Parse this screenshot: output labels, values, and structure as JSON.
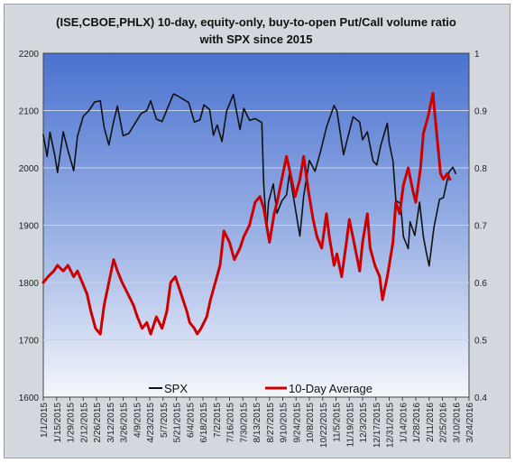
{
  "chart_data": {
    "type": "line",
    "title_lines": [
      "(ISE,CBOE,PHLX) 10-day, equity-only, buy-to-open Put/Call volume ratio",
      "with SPX since 2015"
    ],
    "y_left": {
      "ylim": [
        1600,
        2200
      ],
      "ticks": [
        1600,
        1700,
        1800,
        1900,
        2000,
        2100,
        2200
      ]
    },
    "y_right": {
      "ylim": [
        0.4,
        1.0
      ],
      "ticks": [
        0.4,
        0.5,
        0.6,
        0.7,
        0.8,
        0.9,
        1.0
      ]
    },
    "x_range": [
      "2015-01-01",
      "2016-03-24"
    ],
    "x_tick_labels": [
      "1/1/2015",
      "1/15/2015",
      "1/29/2015",
      "2/12/2015",
      "2/26/2015",
      "3/12/2015",
      "3/26/2015",
      "4/9/2015",
      "4/23/2015",
      "5/7/2015",
      "5/21/2015",
      "6/4/2015",
      "6/18/2015",
      "7/2/2015",
      "7/16/2015",
      "7/30/2015",
      "8/13/2015",
      "8/27/2015",
      "9/10/2015",
      "9/24/2015",
      "10/8/2015",
      "10/22/2015",
      "11/5/2015",
      "11/19/2015",
      "12/3/2015",
      "12/17/2015",
      "12/31/2015",
      "1/14/2016",
      "1/28/2016",
      "2/11/2016",
      "2/25/2016",
      "3/10/2016",
      "3/24/2016"
    ],
    "grid": true,
    "legend_position": "bottom",
    "series": [
      {
        "name": "SPX",
        "axis": "left",
        "color": "#111111",
        "points": [
          [
            "2015-01-01",
            2058
          ],
          [
            "2015-01-05",
            2020
          ],
          [
            "2015-01-08",
            2062
          ],
          [
            "2015-01-13",
            2023
          ],
          [
            "2015-01-16",
            1992
          ],
          [
            "2015-01-22",
            2063
          ],
          [
            "2015-01-27",
            2030
          ],
          [
            "2015-02-02",
            1995
          ],
          [
            "2015-02-06",
            2055
          ],
          [
            "2015-02-12",
            2090
          ],
          [
            "2015-02-18",
            2100
          ],
          [
            "2015-02-24",
            2115
          ],
          [
            "2015-03-02",
            2117
          ],
          [
            "2015-03-06",
            2071
          ],
          [
            "2015-03-11",
            2040
          ],
          [
            "2015-03-16",
            2081
          ],
          [
            "2015-03-20",
            2108
          ],
          [
            "2015-03-26",
            2056
          ],
          [
            "2015-04-01",
            2060
          ],
          [
            "2015-04-07",
            2076
          ],
          [
            "2015-04-14",
            2095
          ],
          [
            "2015-04-20",
            2100
          ],
          [
            "2015-04-24",
            2117
          ],
          [
            "2015-04-30",
            2085
          ],
          [
            "2015-05-06",
            2081
          ],
          [
            "2015-05-12",
            2105
          ],
          [
            "2015-05-18",
            2129
          ],
          [
            "2015-05-22",
            2126
          ],
          [
            "2015-05-28",
            2120
          ],
          [
            "2015-06-03",
            2114
          ],
          [
            "2015-06-09",
            2080
          ],
          [
            "2015-06-15",
            2084
          ],
          [
            "2015-06-19",
            2110
          ],
          [
            "2015-06-25",
            2102
          ],
          [
            "2015-06-29",
            2057
          ],
          [
            "2015-07-03",
            2075
          ],
          [
            "2015-07-08",
            2046
          ],
          [
            "2015-07-13",
            2099
          ],
          [
            "2015-07-20",
            2128
          ],
          [
            "2015-07-27",
            2067
          ],
          [
            "2015-07-31",
            2104
          ],
          [
            "2015-08-06",
            2083
          ],
          [
            "2015-08-12",
            2086
          ],
          [
            "2015-08-19",
            2079
          ],
          [
            "2015-08-21",
            1971
          ],
          [
            "2015-08-24",
            1893
          ],
          [
            "2015-08-26",
            1940
          ],
          [
            "2015-08-31",
            1972
          ],
          [
            "2015-09-04",
            1921
          ],
          [
            "2015-09-09",
            1942
          ],
          [
            "2015-09-14",
            1953
          ],
          [
            "2015-09-17",
            1990
          ],
          [
            "2015-09-22",
            1942
          ],
          [
            "2015-09-28",
            1881
          ],
          [
            "2015-10-02",
            1951
          ],
          [
            "2015-10-08",
            2013
          ],
          [
            "2015-10-14",
            1994
          ],
          [
            "2015-10-20",
            2030
          ],
          [
            "2015-10-26",
            2071
          ],
          [
            "2015-11-03",
            2109
          ],
          [
            "2015-11-06",
            2099
          ],
          [
            "2015-11-13",
            2023
          ],
          [
            "2015-11-17",
            2050
          ],
          [
            "2015-11-23",
            2089
          ],
          [
            "2015-11-30",
            2080
          ],
          [
            "2015-12-03",
            2049
          ],
          [
            "2015-12-08",
            2063
          ],
          [
            "2015-12-14",
            2012
          ],
          [
            "2015-12-18",
            2005
          ],
          [
            "2015-12-22",
            2038
          ],
          [
            "2015-12-29",
            2078
          ],
          [
            "2015-12-31",
            2044
          ],
          [
            "2016-01-04",
            2012
          ],
          [
            "2016-01-07",
            1943
          ],
          [
            "2016-01-12",
            1938
          ],
          [
            "2016-01-15",
            1880
          ],
          [
            "2016-01-20",
            1859
          ],
          [
            "2016-01-22",
            1906
          ],
          [
            "2016-01-27",
            1882
          ],
          [
            "2016-02-01",
            1940
          ],
          [
            "2016-02-05",
            1880
          ],
          [
            "2016-02-08",
            1853
          ],
          [
            "2016-02-11",
            1829
          ],
          [
            "2016-02-16",
            1895
          ],
          [
            "2016-02-22",
            1945
          ],
          [
            "2016-02-26",
            1948
          ],
          [
            "2016-03-01",
            1978
          ],
          [
            "2016-03-03",
            1993
          ],
          [
            "2016-03-07",
            2001
          ],
          [
            "2016-03-10",
            1990
          ]
        ]
      },
      {
        "name": "10-Day Average",
        "axis": "right",
        "color": "#cc0000",
        "points": [
          [
            "2015-01-01",
            0.6
          ],
          [
            "2015-01-06",
            0.61
          ],
          [
            "2015-01-12",
            0.62
          ],
          [
            "2015-01-16",
            0.63
          ],
          [
            "2015-01-22",
            0.62
          ],
          [
            "2015-01-27",
            0.63
          ],
          [
            "2015-02-02",
            0.61
          ],
          [
            "2015-02-06",
            0.62
          ],
          [
            "2015-02-11",
            0.6
          ],
          [
            "2015-02-16",
            0.58
          ],
          [
            "2015-02-20",
            0.55
          ],
          [
            "2015-02-25",
            0.52
          ],
          [
            "2015-03-02",
            0.51
          ],
          [
            "2015-03-06",
            0.56
          ],
          [
            "2015-03-11",
            0.6
          ],
          [
            "2015-03-16",
            0.64
          ],
          [
            "2015-03-20",
            0.62
          ],
          [
            "2015-03-25",
            0.6
          ],
          [
            "2015-03-31",
            0.58
          ],
          [
            "2015-04-06",
            0.56
          ],
          [
            "2015-04-10",
            0.54
          ],
          [
            "2015-04-15",
            0.52
          ],
          [
            "2015-04-20",
            0.53
          ],
          [
            "2015-04-24",
            0.51
          ],
          [
            "2015-04-30",
            0.54
          ],
          [
            "2015-05-06",
            0.52
          ],
          [
            "2015-05-11",
            0.55
          ],
          [
            "2015-05-15",
            0.6
          ],
          [
            "2015-05-20",
            0.61
          ],
          [
            "2015-05-26",
            0.58
          ],
          [
            "2015-06-01",
            0.55
          ],
          [
            "2015-06-04",
            0.53
          ],
          [
            "2015-06-09",
            0.52
          ],
          [
            "2015-06-12",
            0.51
          ],
          [
            "2015-06-16",
            0.52
          ],
          [
            "2015-06-22",
            0.54
          ],
          [
            "2015-06-26",
            0.57
          ],
          [
            "2015-07-01",
            0.6
          ],
          [
            "2015-07-06",
            0.63
          ],
          [
            "2015-07-10",
            0.69
          ],
          [
            "2015-07-16",
            0.67
          ],
          [
            "2015-07-21",
            0.64
          ],
          [
            "2015-07-27",
            0.66
          ],
          [
            "2015-07-31",
            0.68
          ],
          [
            "2015-08-06",
            0.7
          ],
          [
            "2015-08-12",
            0.74
          ],
          [
            "2015-08-17",
            0.75
          ],
          [
            "2015-08-21",
            0.73
          ],
          [
            "2015-08-24",
            0.7
          ],
          [
            "2015-08-27",
            0.67
          ],
          [
            "2015-09-01",
            0.72
          ],
          [
            "2015-09-04",
            0.74
          ],
          [
            "2015-09-09",
            0.78
          ],
          [
            "2015-09-14",
            0.82
          ],
          [
            "2015-09-18",
            0.79
          ],
          [
            "2015-09-23",
            0.75
          ],
          [
            "2015-09-28",
            0.78
          ],
          [
            "2015-10-02",
            0.82
          ],
          [
            "2015-10-07",
            0.76
          ],
          [
            "2015-10-12",
            0.71
          ],
          [
            "2015-10-16",
            0.68
          ],
          [
            "2015-10-21",
            0.66
          ],
          [
            "2015-10-26",
            0.72
          ],
          [
            "2015-10-29",
            0.68
          ],
          [
            "2015-11-03",
            0.63
          ],
          [
            "2015-11-06",
            0.65
          ],
          [
            "2015-11-11",
            0.61
          ],
          [
            "2015-11-16",
            0.67
          ],
          [
            "2015-11-19",
            0.71
          ],
          [
            "2015-11-24",
            0.67
          ],
          [
            "2015-11-30",
            0.62
          ],
          [
            "2015-12-03",
            0.67
          ],
          [
            "2015-12-08",
            0.72
          ],
          [
            "2015-12-11",
            0.66
          ],
          [
            "2015-12-16",
            0.63
          ],
          [
            "2015-12-21",
            0.61
          ],
          [
            "2015-12-24",
            0.57
          ],
          [
            "2015-12-29",
            0.61
          ],
          [
            "2016-01-04",
            0.67
          ],
          [
            "2016-01-07",
            0.74
          ],
          [
            "2016-01-11",
            0.72
          ],
          [
            "2016-01-15",
            0.77
          ],
          [
            "2016-01-20",
            0.8
          ],
          [
            "2016-01-25",
            0.76
          ],
          [
            "2016-01-28",
            0.74
          ],
          [
            "2016-02-02",
            0.8
          ],
          [
            "2016-02-05",
            0.86
          ],
          [
            "2016-02-10",
            0.89
          ],
          [
            "2016-02-15",
            0.93
          ],
          [
            "2016-02-19",
            0.86
          ],
          [
            "2016-02-23",
            0.79
          ],
          [
            "2016-02-26",
            0.78
          ],
          [
            "2016-03-01",
            0.79
          ],
          [
            "2016-03-04",
            0.78
          ]
        ]
      }
    ]
  },
  "legend": {
    "items": [
      {
        "label": "SPX",
        "color": "#111111"
      },
      {
        "label": "10-Day Average",
        "color": "#cc0000"
      }
    ]
  }
}
